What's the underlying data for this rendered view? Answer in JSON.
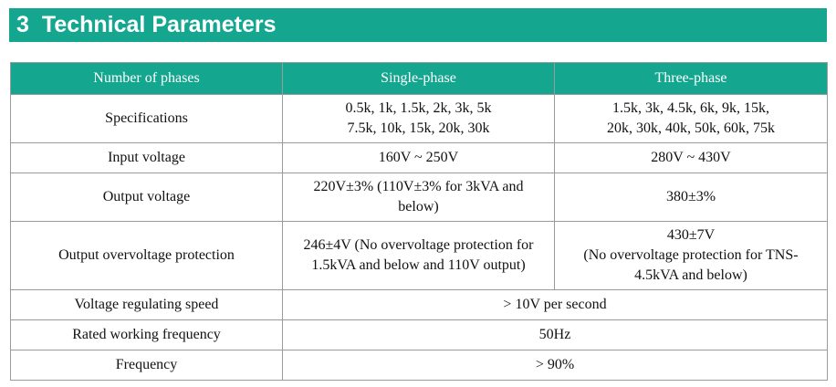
{
  "section": {
    "number": "3",
    "title": "Technical Parameters"
  },
  "colors": {
    "accent": "#14a68f",
    "border": "#9a9a9a"
  },
  "table": {
    "headers": [
      "Number of phases",
      "Single-phase",
      "Three-phase"
    ],
    "rows": [
      {
        "label": "Specifications",
        "single": [
          "0.5k, 1k, 1.5k, 2k, 3k, 5k",
          "7.5k, 10k, 15k, 20k, 30k"
        ],
        "three": [
          "1.5k, 3k, 4.5k, 6k, 9k, 15k,",
          "20k, 30k, 40k, 50k, 60k, 75k"
        ]
      },
      {
        "label": "Input voltage",
        "single": "160V ~ 250V",
        "three": "280V ~ 430V"
      },
      {
        "label": "Output voltage",
        "single": [
          "220V±3% (110V±3% for 3kVA and",
          "below)"
        ],
        "three": "380±3%"
      },
      {
        "label": "Output overvoltage protection",
        "single": [
          "246±4V (No overvoltage protection for",
          "1.5kVA and below and 110V output)"
        ],
        "three": [
          "430±7V",
          "(No overvoltage protection for TNS-",
          "4.5kVA and below)"
        ]
      },
      {
        "label": "Voltage regulating speed",
        "merged": "> 10V per second"
      },
      {
        "label": "Rated working frequency",
        "merged": "50Hz"
      },
      {
        "label": "Frequency",
        "merged": "> 90%"
      }
    ]
  }
}
